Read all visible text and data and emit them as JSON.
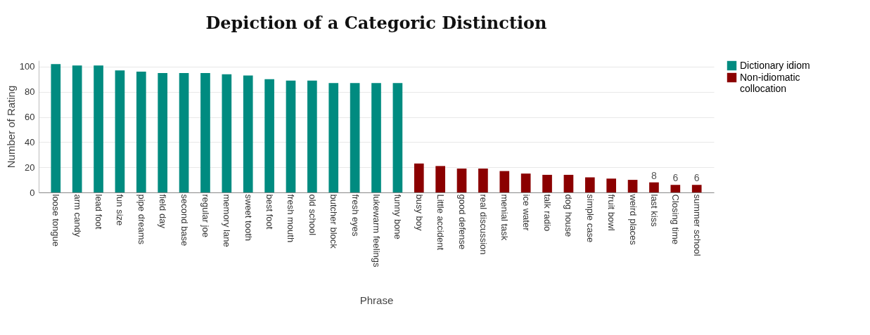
{
  "chart_data": {
    "type": "bar",
    "title": "Depiction of a Categoric Distinction",
    "xlabel": "Phrase",
    "ylabel": "Number of Rating",
    "categories": [
      "loose tongue",
      "arm candy",
      "lead foot",
      "fun size",
      "pipe dreams",
      "field day",
      "second base",
      "regular joe",
      "memory lane",
      "sweet tooth",
      "best foot",
      "fresh mouth",
      "old school",
      "butcher block",
      "fresh eyes",
      "lukewarm feelings",
      "funny bone",
      "busy boy",
      "Little accident",
      "good defense",
      "real discussion",
      "menial task",
      "ice water",
      "talk radio",
      "dog house",
      "simple case",
      "fruit bowl",
      "weird places",
      "last kiss",
      "Closing time",
      "summer school"
    ],
    "series": [
      {
        "name": "Dictionary idiom",
        "color": "#008b80",
        "values": [
          102,
          101,
          101,
          97,
          96,
          95,
          95,
          95,
          94,
          93,
          90,
          89,
          89,
          87,
          87,
          87,
          87,
          null,
          null,
          null,
          null,
          null,
          null,
          null,
          null,
          null,
          null,
          null,
          null,
          null,
          null
        ]
      },
      {
        "name": "Non-idiomatic collocation",
        "color": "#8b0000",
        "values": [
          null,
          null,
          null,
          null,
          null,
          null,
          null,
          null,
          null,
          null,
          null,
          null,
          null,
          null,
          null,
          null,
          null,
          23,
          21,
          19,
          19,
          17,
          15,
          14,
          14,
          12,
          11,
          10,
          8,
          6,
          6
        ],
        "value_labels": [
          null,
          null,
          null,
          null,
          null,
          null,
          null,
          null,
          null,
          null,
          null,
          null,
          null,
          null,
          null,
          null,
          null,
          null,
          null,
          null,
          null,
          null,
          null,
          null,
          null,
          null,
          null,
          null,
          "8",
          "6",
          "6"
        ]
      }
    ],
    "ylim": [
      0,
      105
    ],
    "yticks": [
      0,
      20,
      40,
      60,
      80,
      100
    ],
    "grid": "y",
    "legend": "top right"
  }
}
